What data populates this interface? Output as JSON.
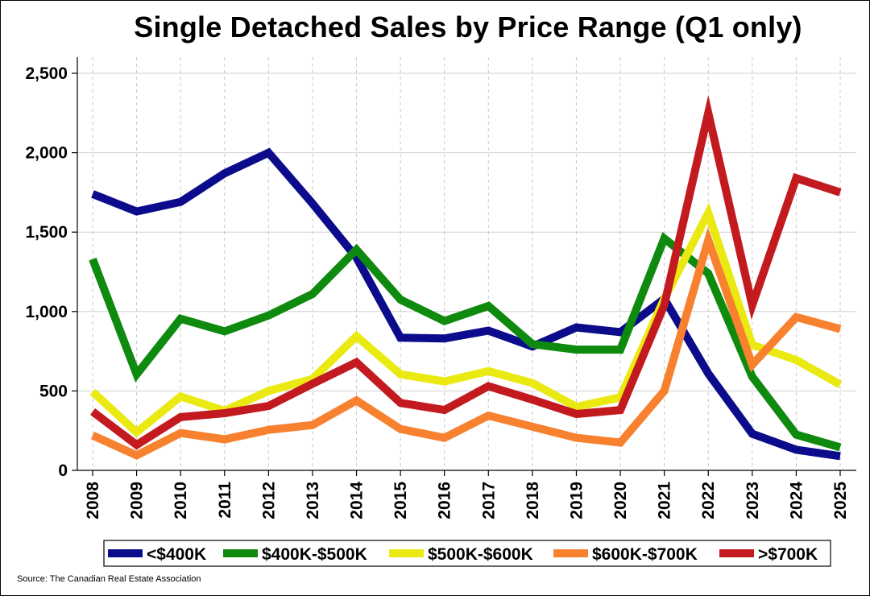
{
  "chart_data": {
    "type": "line",
    "title": "Single Detached Sales by Price Range (Q1 only)",
    "xlabel": "",
    "ylabel": "",
    "ylim": [
      0,
      2500
    ],
    "yticks": [
      0,
      500,
      1000,
      1500,
      2000,
      2500
    ],
    "ytick_labels": [
      "0",
      "500",
      "1,000",
      "1,500",
      "2,000",
      "2,500"
    ],
    "grid": true,
    "legend_position": "bottom",
    "categories": [
      "2008",
      "2009",
      "2010",
      "2011",
      "2012",
      "2013",
      "2014",
      "2015",
      "2016",
      "2017",
      "2018",
      "2019",
      "2020",
      "2021",
      "2022",
      "2023",
      "2024",
      "2025"
    ],
    "series": [
      {
        "name": "<$400K",
        "color": "#0b0b8c",
        "values": [
          1740,
          1630,
          1690,
          1870,
          2000,
          1680,
          1340,
          835,
          830,
          880,
          780,
          900,
          870,
          1080,
          610,
          230,
          130,
          90
        ]
      },
      {
        "name": "$400K-$500K",
        "color": "#0e8a0e",
        "values": [
          1330,
          605,
          955,
          875,
          975,
          1110,
          1390,
          1075,
          940,
          1035,
          795,
          760,
          760,
          1460,
          1240,
          590,
          225,
          145
        ]
      },
      {
        "name": "$500K-$600K",
        "color": "#eaea12",
        "values": [
          495,
          240,
          465,
          375,
          500,
          575,
          845,
          605,
          560,
          625,
          550,
          400,
          460,
          1080,
          1620,
          790,
          695,
          540
        ]
      },
      {
        "name": "$600K-$700K",
        "color": "#f7812f",
        "values": [
          220,
          95,
          235,
          195,
          255,
          285,
          440,
          260,
          205,
          345,
          275,
          205,
          175,
          500,
          1450,
          665,
          965,
          890
        ]
      },
      {
        "name": ">$700K",
        "color": "#c21a1f",
        "values": [
          370,
          160,
          335,
          360,
          405,
          545,
          680,
          425,
          380,
          530,
          445,
          355,
          380,
          1040,
          2250,
          1040,
          1840,
          1750
        ]
      }
    ]
  },
  "source": "Source: The Canadian Real Estate Association"
}
